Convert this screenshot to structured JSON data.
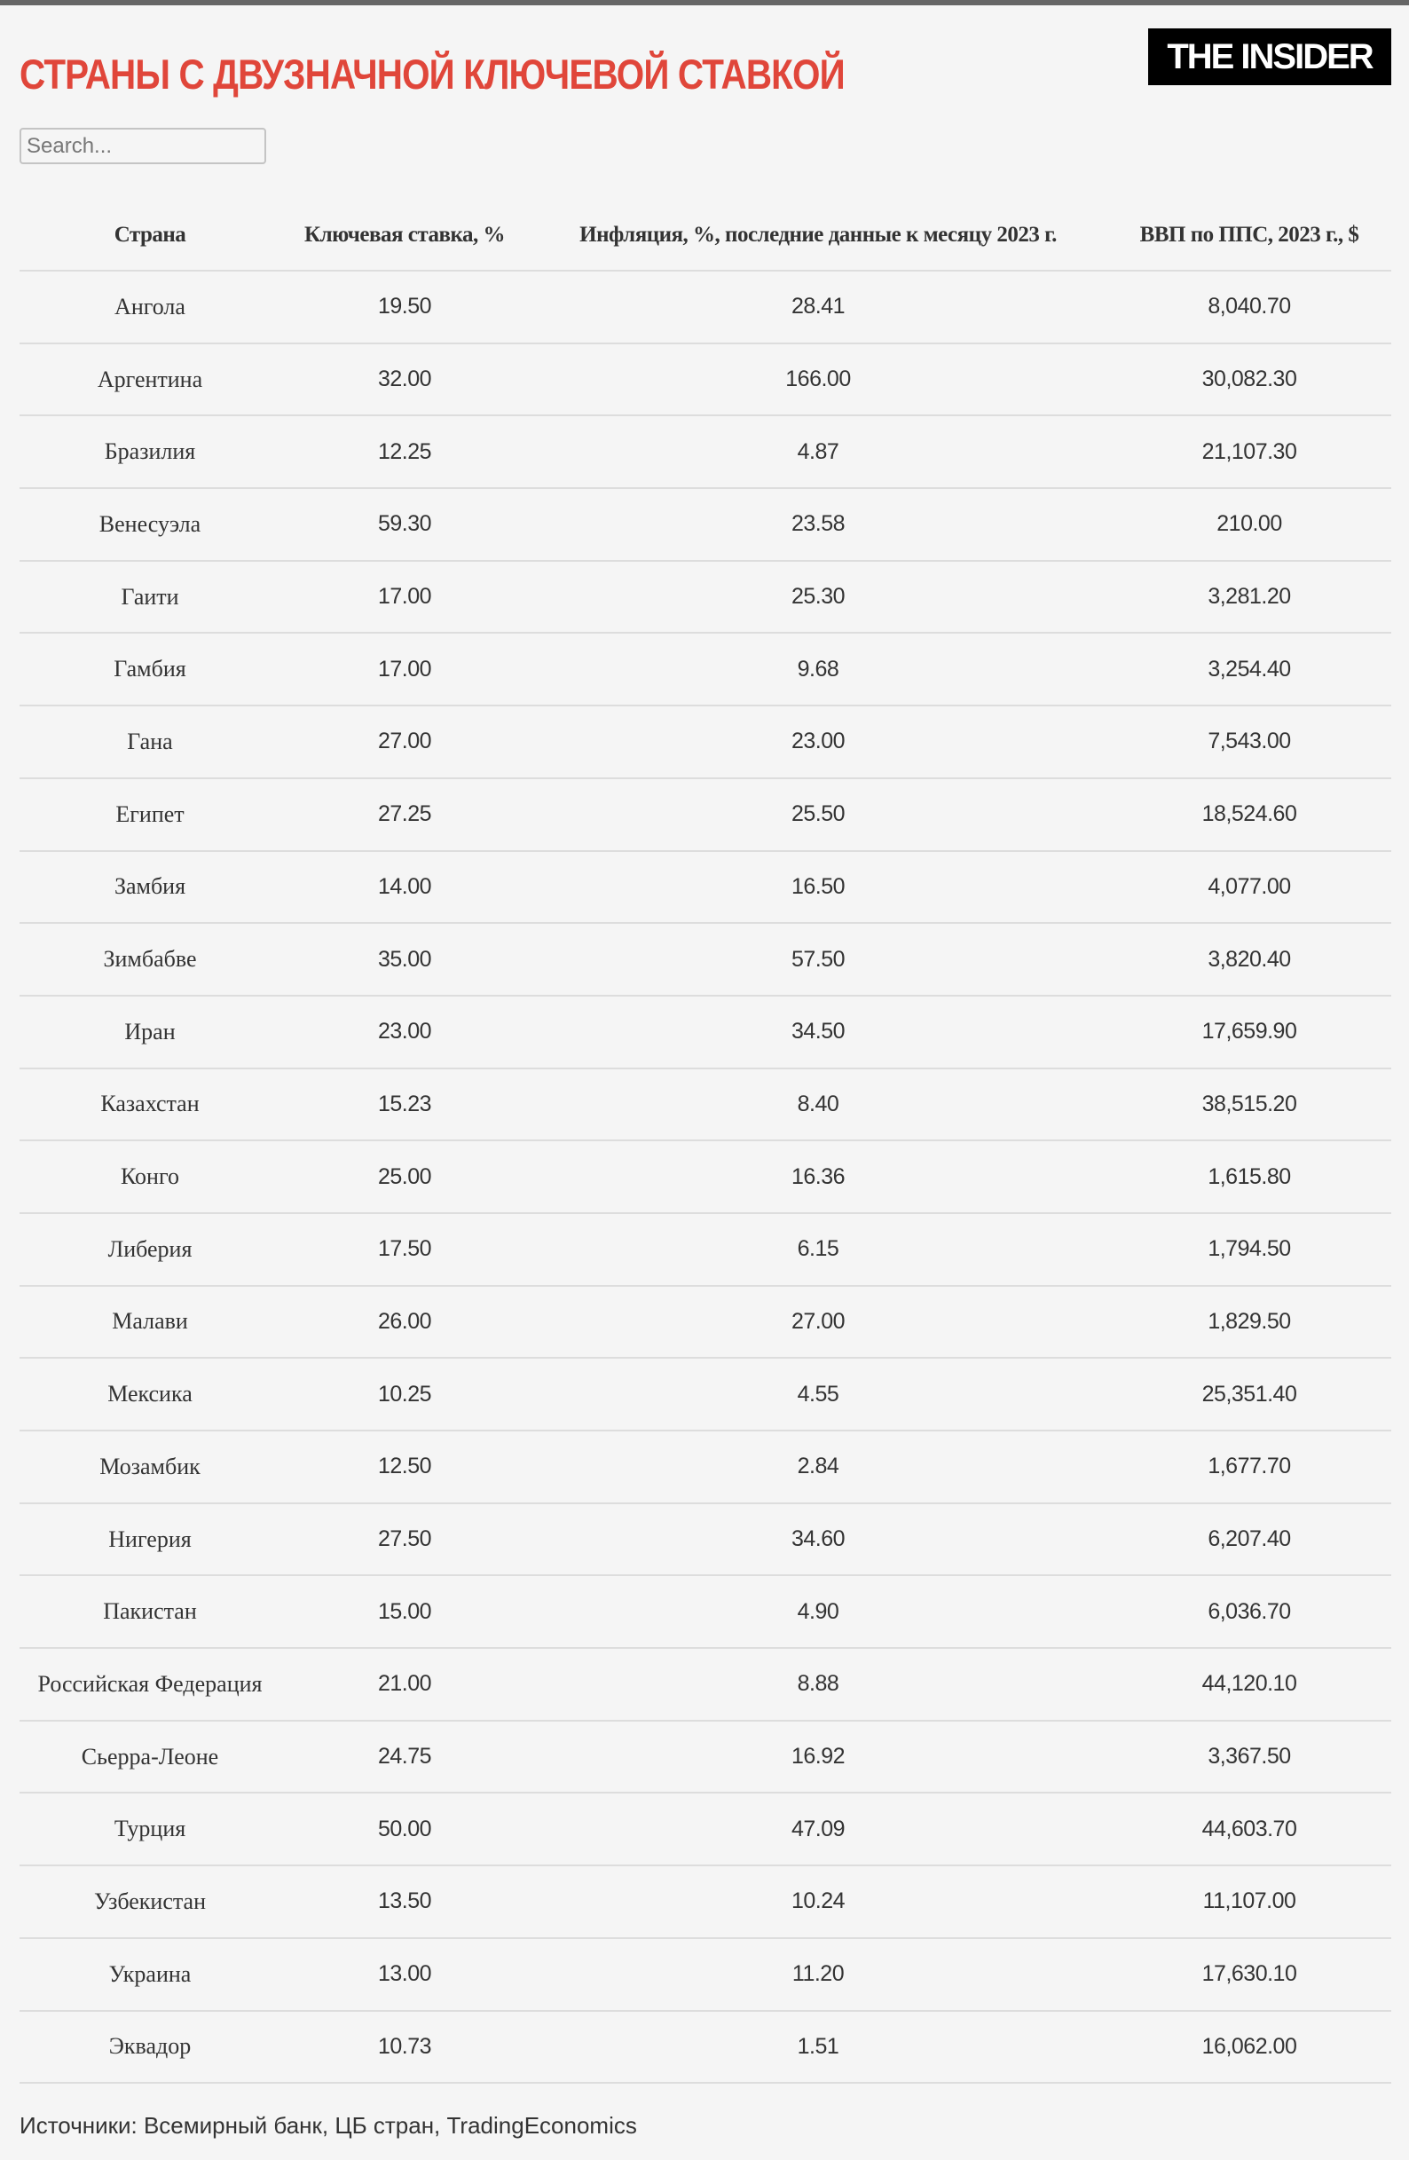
{
  "title": "СТРАНЫ С ДВУЗНАЧНОЙ КЛЮЧЕВОЙ СТАВКОЙ",
  "logo": "THE INSIDER",
  "search": {
    "placeholder": "Search...",
    "value": ""
  },
  "colors": {
    "title": "#e0463a",
    "logo_bg": "#000000"
  },
  "table": {
    "headers": [
      "Страна",
      "Ключевая ставка, %",
      "Инфляция, %, последние данные к месяцу 2023 г.",
      "ВВП по ППС, 2023 г., $"
    ],
    "rows": [
      [
        "Ангола",
        "19.50",
        "28.41",
        "8,040.70"
      ],
      [
        "Аргентина",
        "32.00",
        "166.00",
        "30,082.30"
      ],
      [
        "Бразилия",
        "12.25",
        "4.87",
        "21,107.30"
      ],
      [
        "Венесуэла",
        "59.30",
        "23.58",
        "210.00"
      ],
      [
        "Гаити",
        "17.00",
        "25.30",
        "3,281.20"
      ],
      [
        "Гамбия",
        "17.00",
        "9.68",
        "3,254.40"
      ],
      [
        "Гана",
        "27.00",
        "23.00",
        "7,543.00"
      ],
      [
        "Египет",
        "27.25",
        "25.50",
        "18,524.60"
      ],
      [
        "Замбия",
        "14.00",
        "16.50",
        "4,077.00"
      ],
      [
        "Зимбабве",
        "35.00",
        "57.50",
        "3,820.40"
      ],
      [
        "Иран",
        "23.00",
        "34.50",
        "17,659.90"
      ],
      [
        "Казахстан",
        "15.23",
        "8.40",
        "38,515.20"
      ],
      [
        "Конго",
        "25.00",
        "16.36",
        "1,615.80"
      ],
      [
        "Либерия",
        "17.50",
        "6.15",
        "1,794.50"
      ],
      [
        "Малави",
        "26.00",
        "27.00",
        "1,829.50"
      ],
      [
        "Мексика",
        "10.25",
        "4.55",
        "25,351.40"
      ],
      [
        "Мозамбик",
        "12.50",
        "2.84",
        "1,677.70"
      ],
      [
        "Нигерия",
        "27.50",
        "34.60",
        "6,207.40"
      ],
      [
        "Пакистан",
        "15.00",
        "4.90",
        "6,036.70"
      ],
      [
        "Российская Федерация",
        "21.00",
        "8.88",
        "44,120.10"
      ],
      [
        "Сьерра-Леоне",
        "24.75",
        "16.92",
        "3,367.50"
      ],
      [
        "Турция",
        "50.00",
        "47.09",
        "44,603.70"
      ],
      [
        "Узбекистан",
        "13.50",
        "10.24",
        "11,107.00"
      ],
      [
        "Украина",
        "13.00",
        "11.20",
        "17,630.10"
      ],
      [
        "Эквадор",
        "10.73",
        "1.51",
        "16,062.00"
      ]
    ]
  },
  "footer": "Источники: Всемирный банк, ЦБ стран, TradingEconomics"
}
